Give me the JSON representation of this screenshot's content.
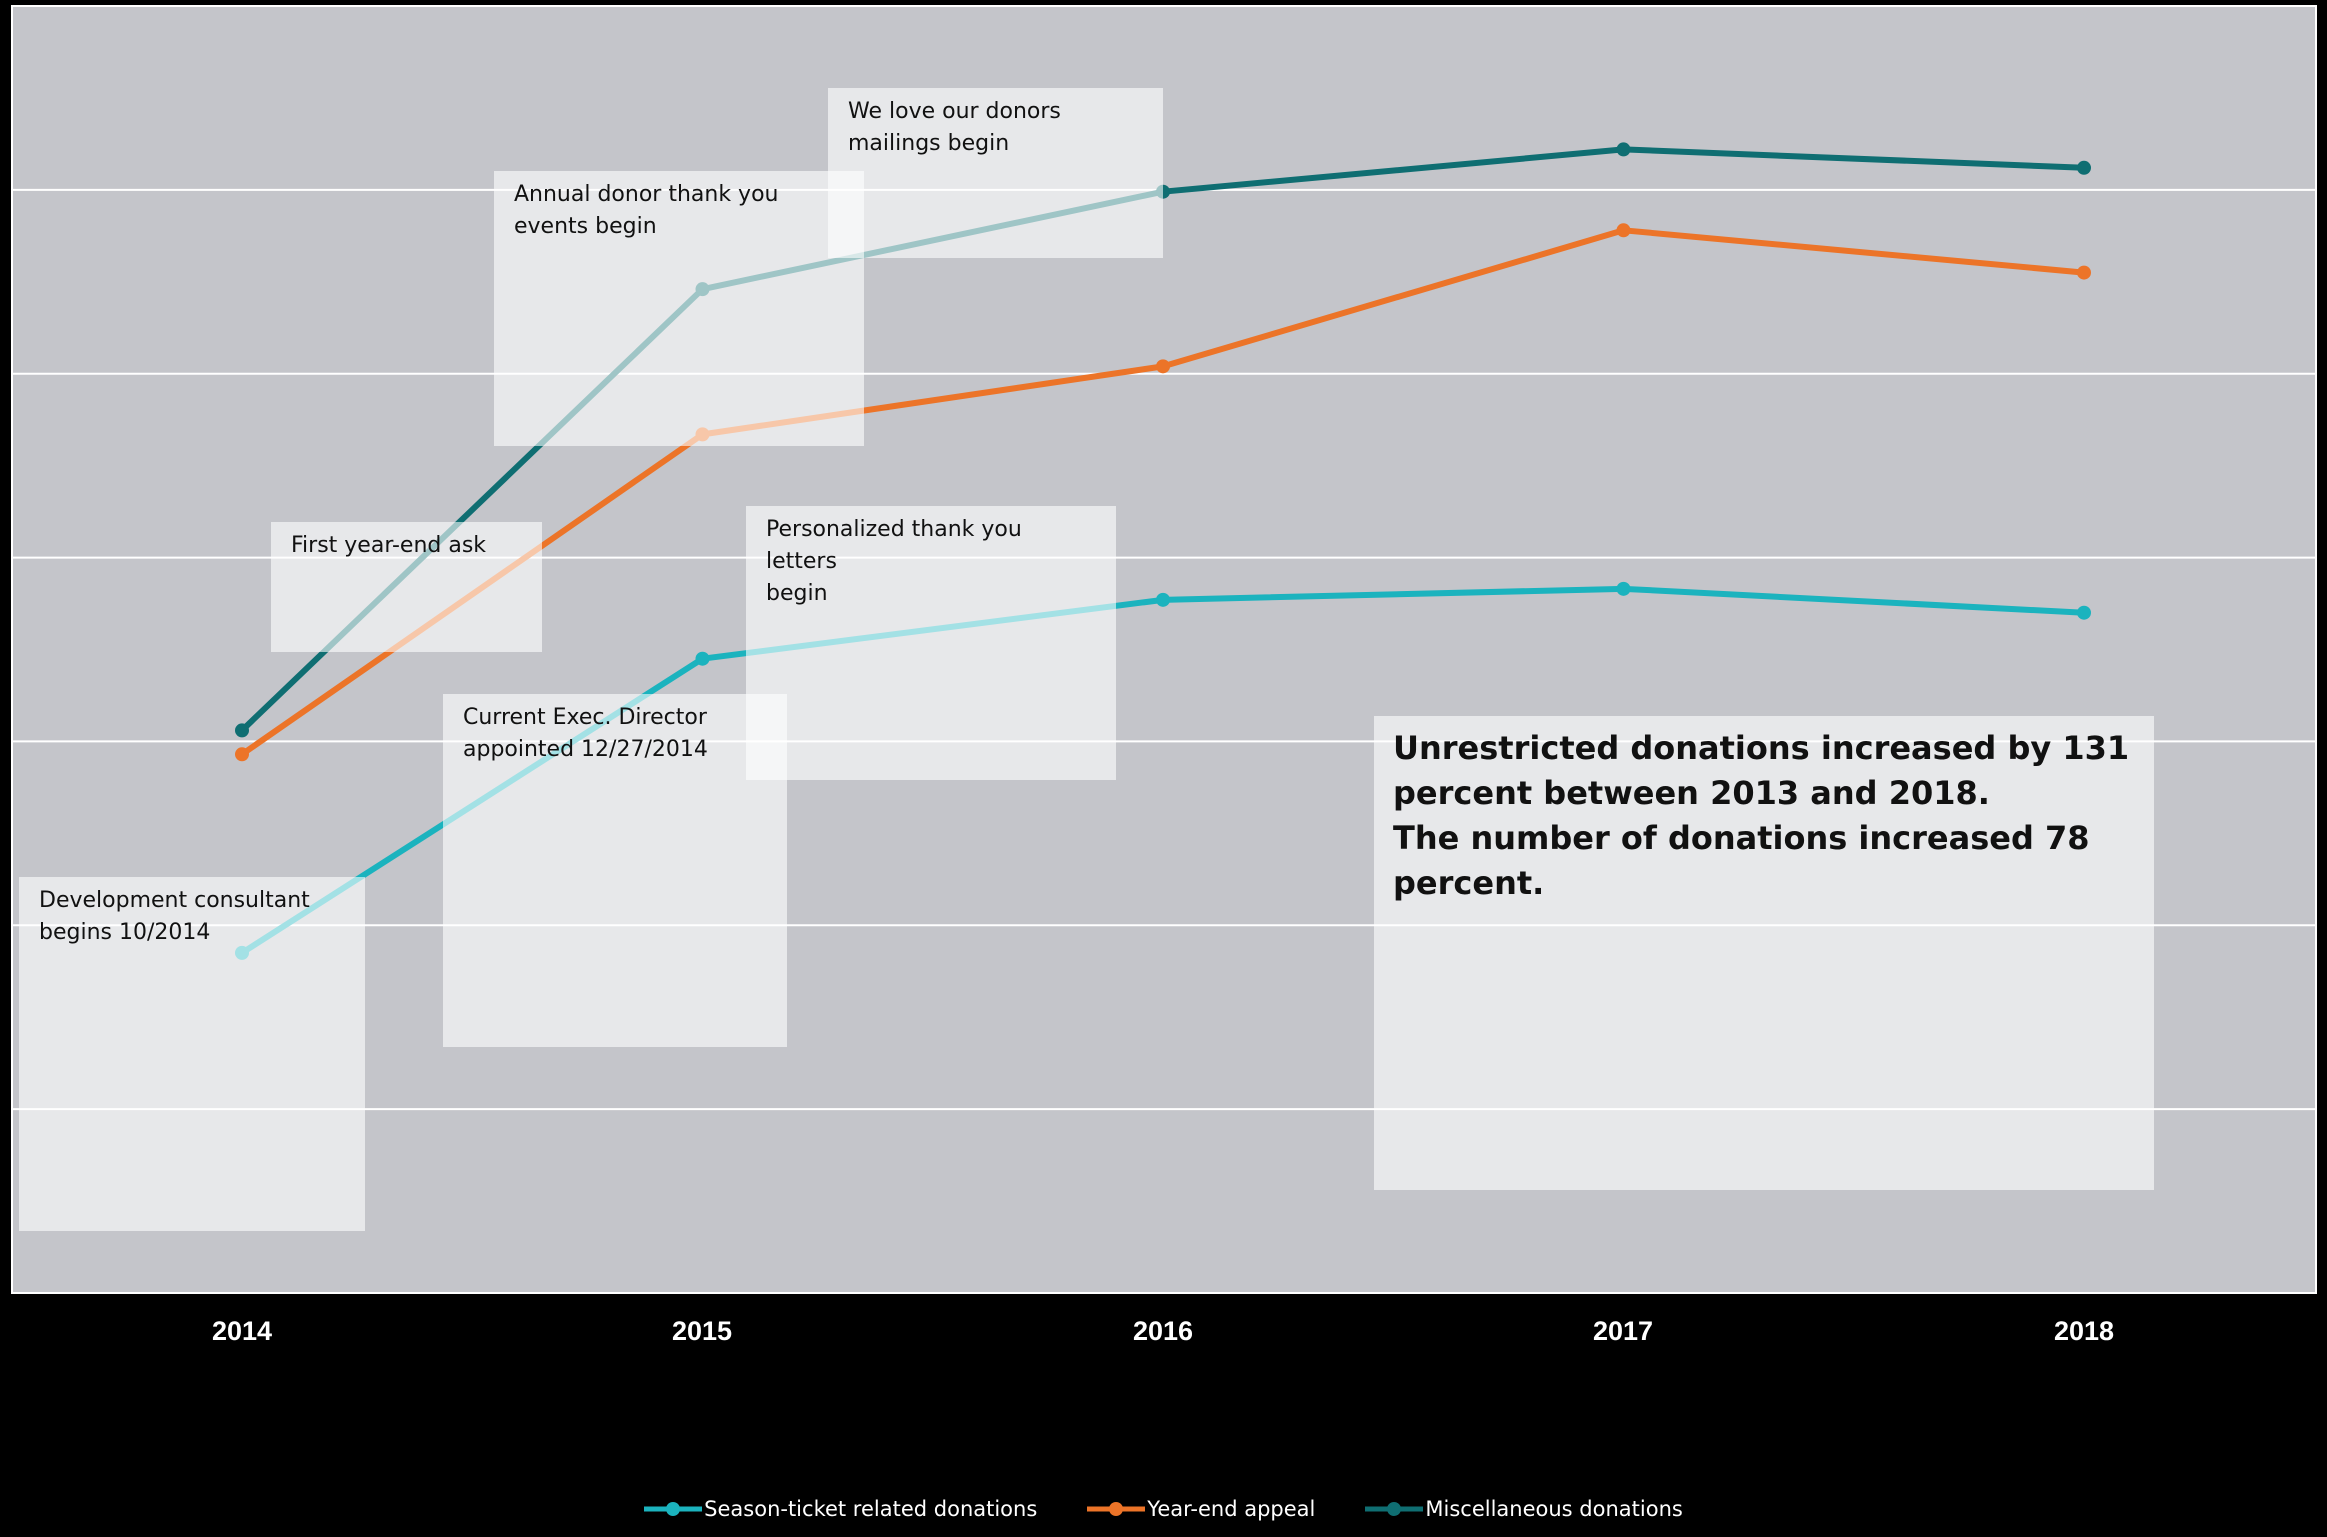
{
  "chart_data": {
    "type": "line",
    "title": "",
    "xlabel": "",
    "ylabel": "",
    "categories": [
      "2014",
      "2015",
      "2016",
      "2017",
      "2018"
    ],
    "ylim": [
      0,
      7
    ],
    "grid": true,
    "legend_position": "bottom",
    "series": [
      {
        "name": "Season-ticket related donations",
        "color": "#1bb3be",
        "values": [
          1.85,
          3.45,
          3.77,
          3.83,
          3.7
        ]
      },
      {
        "name": "Year-end appeal",
        "color": "#ec7428",
        "values": [
          2.93,
          4.67,
          5.04,
          5.78,
          5.55
        ]
      },
      {
        "name": "Miscellaneous donations",
        "color": "#0f6e72",
        "values": [
          3.06,
          5.46,
          5.99,
          6.22,
          6.12
        ]
      }
    ],
    "annotations": [
      {
        "id": "dev-consultant",
        "text": [
          "Development consultant",
          "begins 10/2014"
        ]
      },
      {
        "id": "exec-director",
        "text": [
          "Current Exec. Director",
          "appointed 12/27/2014"
        ]
      },
      {
        "id": "year-end-ask",
        "text": [
          "First year-end ask"
        ]
      },
      {
        "id": "thank-you-events",
        "text": [
          "Annual donor thank you",
          "events begin"
        ]
      },
      {
        "id": "mailings",
        "text": [
          "We love our donors",
          "mailings begin"
        ]
      },
      {
        "id": "letters",
        "text": [
          "Personalized thank you letters",
          "begin"
        ]
      },
      {
        "id": "summary",
        "text": [
          "Unrestricted donations increased by 131",
          "percent between 2013 and 2018.",
          "The number of donations increased 78 percent."
        ]
      }
    ]
  }
}
